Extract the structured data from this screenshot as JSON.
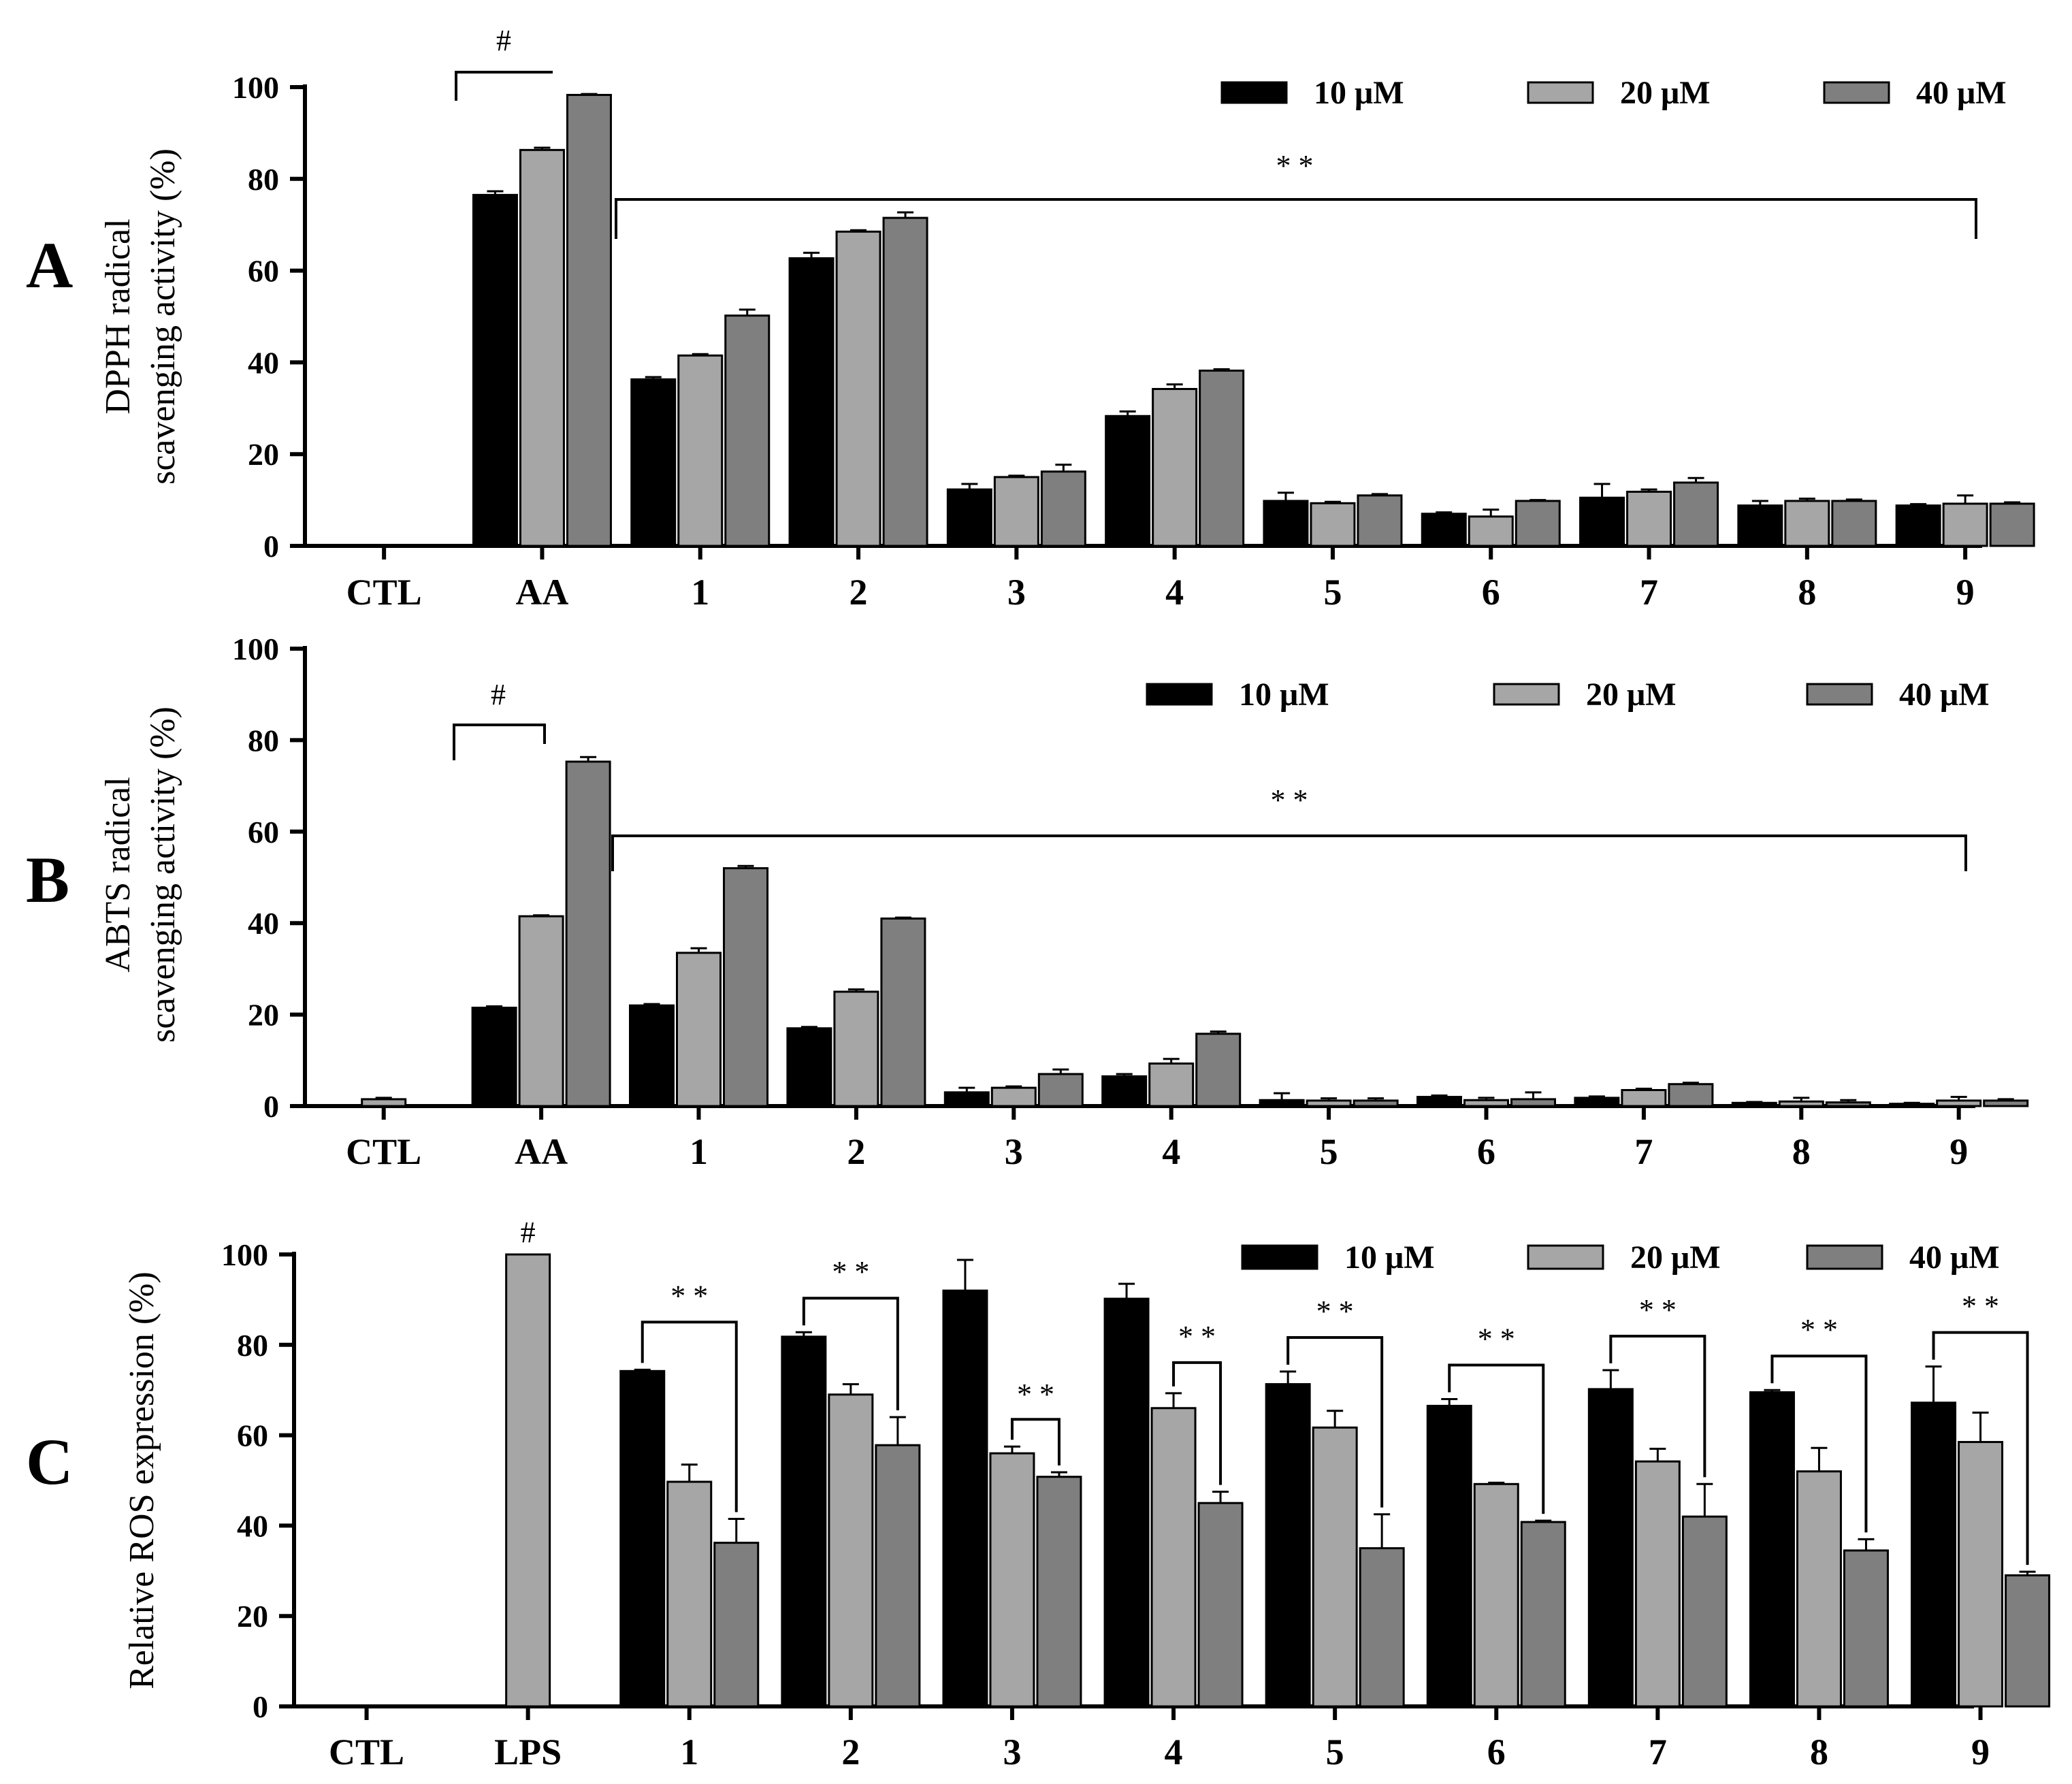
{
  "chart_data": [
    {
      "type": "bar",
      "panel_label": "A",
      "ylabel_line1": "DPPH radical",
      "ylabel_line2": "scavenging activity (%)",
      "ylim": [
        0,
        100
      ],
      "yticks": [
        "0",
        "20",
        "40",
        "60",
        "80",
        "100"
      ],
      "categories": [
        "CTL",
        "AA",
        "1",
        "2",
        "3",
        "4",
        "5",
        "6",
        "7",
        "8",
        "9"
      ],
      "series": [
        {
          "name": "10 μM",
          "color": "#000000",
          "values": [
            0,
            76.5,
            36.3,
            62.7,
            12.3,
            28.3,
            9.8,
            7.0,
            10.5,
            8.8,
            8.8
          ],
          "errors": [
            0,
            0.8,
            0.5,
            1.2,
            1.2,
            1.0,
            1.8,
            0.3,
            3.0,
            1.0,
            0.3
          ]
        },
        {
          "name": "20 μM",
          "color": "#a6a6a6",
          "values": [
            0,
            86.3,
            41.5,
            68.5,
            15.0,
            34.2,
            9.3,
            6.4,
            11.8,
            9.8,
            9.2
          ],
          "errors": [
            0,
            0.5,
            0.3,
            0.3,
            0.3,
            1.0,
            0.3,
            1.5,
            0.5,
            0.5,
            1.8
          ]
        },
        {
          "name": "40 μM",
          "color": "#7f7f7f",
          "values": [
            0,
            98.3,
            50.2,
            71.5,
            16.2,
            38.2,
            11.0,
            9.8,
            13.8,
            9.8,
            9.2
          ],
          "errors": [
            0,
            0.2,
            1.3,
            1.2,
            1.5,
            0.3,
            0.3,
            0.2,
            1.0,
            0.3,
            0.3
          ]
        }
      ],
      "legend": [
        "10 μM",
        "20 μM",
        "40 μM"
      ],
      "annotations": {
        "hash": "#",
        "stars": "* *"
      }
    },
    {
      "type": "bar",
      "panel_label": "B",
      "ylabel_line1": "ABTS radical",
      "ylabel_line2": "scavenging activity (%)",
      "ylim": [
        0,
        100
      ],
      "yticks": [
        "0",
        "20",
        "40",
        "60",
        "80",
        "100"
      ],
      "categories": [
        "CTL",
        "AA",
        "1",
        "2",
        "3",
        "4",
        "5",
        "6",
        "7",
        "8",
        "9"
      ],
      "series": [
        {
          "name": "10 μM",
          "color": "#000000",
          "values": [
            0,
            21.5,
            22.0,
            17.0,
            3.0,
            6.5,
            1.3,
            2.0,
            1.8,
            0.7,
            0.5
          ],
          "errors": [
            0,
            0.3,
            0.3,
            0.3,
            1.0,
            0.5,
            1.5,
            0.3,
            0.3,
            0.2,
            0.2
          ]
        },
        {
          "name": "20 μM",
          "color": "#a6a6a6",
          "values": [
            1.5,
            41.5,
            33.5,
            25.0,
            4.0,
            9.3,
            1.2,
            1.3,
            3.5,
            1.0,
            1.2
          ],
          "errors": [
            0.3,
            0.2,
            1.0,
            0.5,
            0.3,
            1.0,
            0.5,
            0.5,
            0.3,
            0.8,
            0.8
          ]
        },
        {
          "name": "40 μM",
          "color": "#7f7f7f",
          "values": [
            0,
            75.3,
            52.0,
            41.0,
            7.0,
            15.8,
            1.2,
            1.5,
            4.8,
            0.8,
            1.2
          ],
          "errors": [
            0,
            1.0,
            0.5,
            0.2,
            1.0,
            0.5,
            0.5,
            1.5,
            0.3,
            0.5,
            0.3
          ]
        }
      ],
      "legend": [
        "10 μM",
        "20 μM",
        "40 μM"
      ],
      "annotations": {
        "hash": "#",
        "stars": "* *"
      }
    },
    {
      "type": "bar",
      "panel_label": "C",
      "ylabel_line1": "Relative ROS expression (%)",
      "ylim": [
        0,
        100
      ],
      "yticks": [
        "0",
        "20",
        "40",
        "60",
        "80",
        "100"
      ],
      "categories": [
        "CTL",
        "LPS",
        "1",
        "2",
        "3",
        "4",
        "5",
        "6",
        "7",
        "8",
        "9"
      ],
      "series": [
        {
          "name": "10 μM",
          "color": "#000000",
          "values": [
            0,
            0,
            74.2,
            81.8,
            92.0,
            90.2,
            71.3,
            66.5,
            70.2,
            69.5,
            67.2
          ],
          "errors": [
            0,
            0,
            0.3,
            1.0,
            6.8,
            3.3,
            2.8,
            1.5,
            4.2,
            0.5,
            8.0
          ]
        },
        {
          "name": "20 μM",
          "color": "#a6a6a6",
          "values": [
            0,
            100,
            49.7,
            69.0,
            56.0,
            66.0,
            61.7,
            49.2,
            54.2,
            52.0,
            58.5
          ],
          "errors": [
            0,
            0,
            3.8,
            2.3,
            1.5,
            3.3,
            3.7,
            0.3,
            2.8,
            5.2,
            6.5
          ]
        },
        {
          "name": "40 μM",
          "color": "#7f7f7f",
          "values": [
            0,
            0,
            36.2,
            57.8,
            50.8,
            45.0,
            35.0,
            40.8,
            42.0,
            34.5,
            29.0
          ],
          "errors": [
            0,
            0,
            5.3,
            6.2,
            1.0,
            2.5,
            7.5,
            0.3,
            7.2,
            2.5,
            0.8
          ]
        }
      ],
      "legend": [
        "10 μM",
        "20 μM",
        "40 μM"
      ],
      "annotations": {
        "hash": "#",
        "stars": "* *"
      }
    }
  ]
}
